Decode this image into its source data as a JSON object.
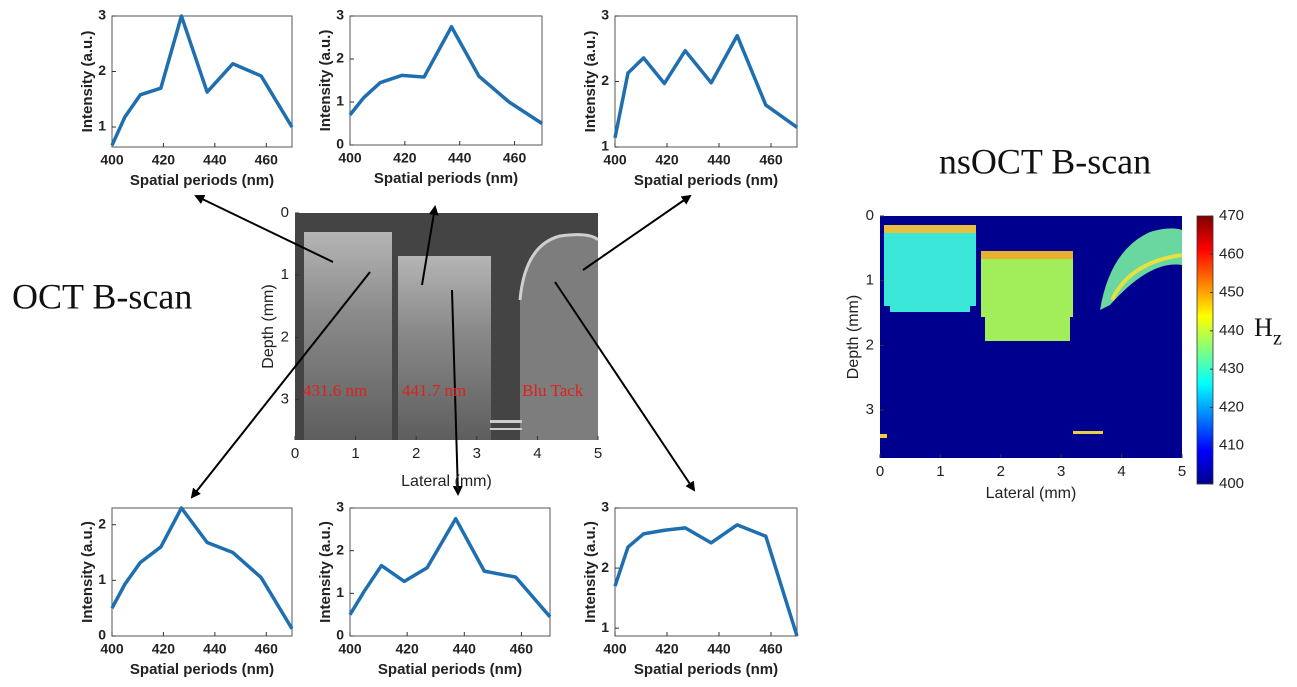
{
  "chart_data": [
    {
      "type": "line",
      "xlabel": "Spatial periods (nm)",
      "ylabel": "Intensity (a.u.)",
      "x": [
        400,
        405,
        411,
        419,
        427,
        437,
        447,
        458,
        470
      ],
      "values": [
        0.67,
        1.18,
        1.58,
        1.7,
        3.0,
        1.63,
        2.14,
        1.92,
        1.0
      ],
      "color": "#1f6fb0",
      "xlim": [
        400,
        470
      ],
      "ylim": [
        0.64,
        3
      ],
      "xticks": [
        400,
        420,
        440,
        460
      ],
      "yticks": [
        1,
        2,
        3
      ]
    },
    {
      "type": "line",
      "xlabel": "Spatial periods (nm)",
      "ylabel": "Intensity (a.u.)",
      "x": [
        400,
        405,
        411,
        419,
        427,
        437,
        447,
        458,
        470
      ],
      "values": [
        0.7,
        1.1,
        1.45,
        1.62,
        1.58,
        2.75,
        1.6,
        1.0,
        0.5
      ],
      "color": "#1f6fb0",
      "xlim": [
        400,
        470
      ],
      "ylim": [
        0,
        3
      ],
      "xticks": [
        400,
        420,
        440,
        460
      ],
      "yticks": [
        0,
        1,
        2,
        3
      ]
    },
    {
      "type": "line",
      "xlabel": "Spatial periods (nm)",
      "ylabel": "Intensity (a.u.)",
      "x": [
        400,
        405,
        411,
        419,
        427,
        437,
        447,
        458,
        470
      ],
      "values": [
        1.14,
        2.13,
        2.36,
        1.97,
        2.47,
        1.98,
        2.7,
        1.64,
        1.3
      ],
      "color": "#1f6fb0",
      "xlim": [
        400,
        470
      ],
      "ylim": [
        1,
        3
      ],
      "xticks": [
        400,
        420,
        440,
        460
      ],
      "yticks": [
        1,
        2,
        3
      ]
    },
    {
      "type": "line",
      "xlabel": "Spatial periods (nm)",
      "ylabel": "Intensity (a.u.)",
      "x": [
        400,
        405,
        411,
        419,
        427,
        437,
        447,
        458,
        470
      ],
      "values": [
        0.5,
        0.93,
        1.32,
        1.6,
        2.3,
        1.68,
        1.5,
        1.05,
        0.13
      ],
      "color": "#1f6fb0",
      "xlim": [
        400,
        470
      ],
      "ylim": [
        0,
        2.3
      ],
      "xticks": [
        400,
        420,
        440,
        460
      ],
      "yticks": [
        0,
        1,
        2
      ]
    },
    {
      "type": "line",
      "xlabel": "Spatial periods (nm)",
      "ylabel": "Intensity (a.u.)",
      "x": [
        400,
        405,
        411,
        419,
        427,
        437,
        447,
        458,
        470
      ],
      "values": [
        0.5,
        1.05,
        1.65,
        1.28,
        1.6,
        2.75,
        1.52,
        1.38,
        0.45
      ],
      "color": "#1f6fb0",
      "xlim": [
        400,
        470
      ],
      "ylim": [
        0,
        3
      ],
      "xticks": [
        400,
        420,
        440,
        460
      ],
      "yticks": [
        0,
        1,
        2,
        3
      ]
    },
    {
      "type": "line",
      "xlabel": "Spatial periods (nm)",
      "ylabel": "Intensity (a.u.)",
      "x": [
        400,
        405,
        411,
        419,
        427,
        437,
        447,
        458,
        470
      ],
      "values": [
        1.7,
        2.35,
        2.57,
        2.63,
        2.67,
        2.42,
        2.72,
        2.53,
        0.87
      ],
      "color": "#1f6fb0",
      "xlim": [
        400,
        470
      ],
      "ylim": [
        0.87,
        3
      ],
      "xticks": [
        400,
        420,
        440,
        460
      ],
      "yticks": [
        1,
        2,
        3
      ]
    },
    {
      "type": "image",
      "title": "OCT B-scan",
      "xlabel": "Lateral (mm)",
      "ylabel": "Depth (mm)",
      "xlim": [
        0,
        5
      ],
      "ylim": [
        0,
        3.65
      ],
      "y_inverted": true,
      "xticks": [
        0,
        1,
        2,
        3,
        4,
        5
      ],
      "yticks": [
        0,
        1,
        2,
        3
      ],
      "annotations": [
        "431.6 nm",
        "441.7 nm",
        "Blu Tack"
      ]
    },
    {
      "type": "heatmap",
      "title": "nsOCT B-scan",
      "xlabel": "Lateral (mm)",
      "ylabel": "Depth (mm)",
      "xlim": [
        0,
        5
      ],
      "ylim": [
        0,
        3.74
      ],
      "y_inverted": true,
      "xticks": [
        0,
        1,
        2,
        3,
        4,
        5
      ],
      "yticks": [
        0,
        1,
        2,
        3
      ],
      "colorbar": {
        "label": "H",
        "label_subscript": "z",
        "clim": [
          400,
          470
        ],
        "ticks": [
          400,
          410,
          420,
          430,
          440,
          450,
          460,
          470
        ]
      }
    }
  ]
}
